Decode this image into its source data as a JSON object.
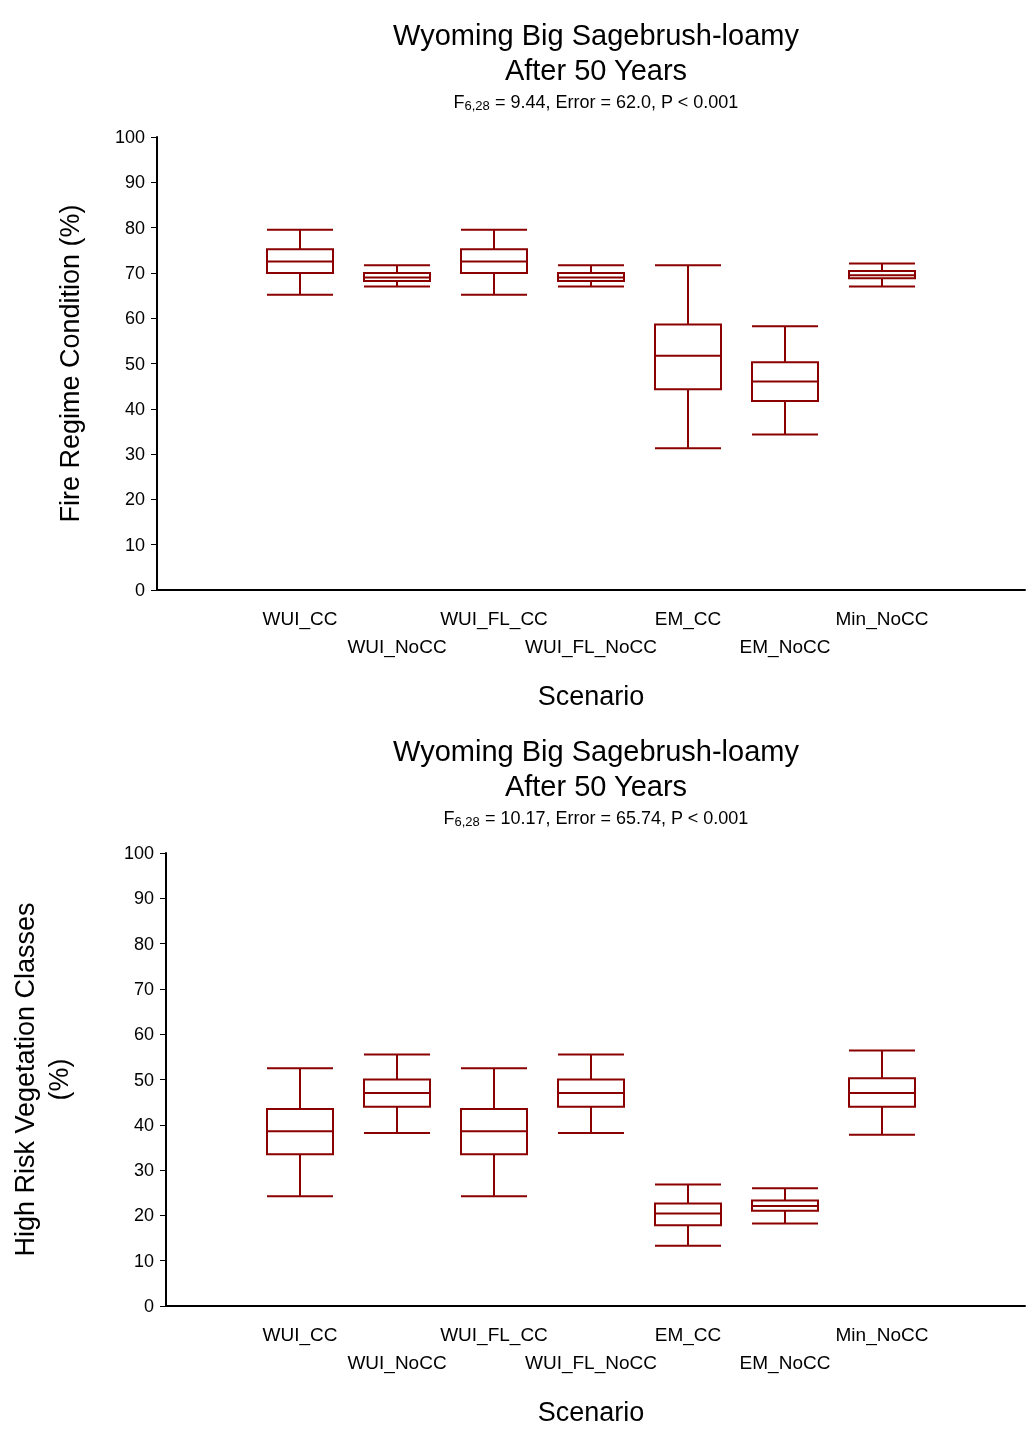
{
  "chart_data": [
    {
      "type": "box",
      "title": "Wyoming Big Sagebrush-loamy\nAfter 50 Years",
      "subtitle": "F$_{6,28}$ = 9.44, Error = 62.0, P < 0.001",
      "xlabel": "Scenario",
      "ylabel": "Fire Regime Condition (%)",
      "color": "#8b0000",
      "categories": [
        "WUI_CC",
        "WUI_NoCC",
        "WUI_FL_CC",
        "WUI_FL_NoCC",
        "EM_CC",
        "EM_NoCC",
        "Min_NoCC"
      ],
      "boxes": [
        {
          "low": 65.2,
          "q1": 70,
          "median": 72.5,
          "q3": 75.2,
          "high": 79.5
        },
        {
          "low": 67,
          "q1": 68.2,
          "median": 69,
          "q3": 70,
          "high": 71.7
        },
        {
          "low": 65.2,
          "q1": 70,
          "median": 72.5,
          "q3": 75.2,
          "high": 79.5
        },
        {
          "low": 67,
          "q1": 68.2,
          "median": 69,
          "q3": 70,
          "high": 71.7
        },
        {
          "low": 31.3,
          "q1": 44.3,
          "median": 51.7,
          "q3": 58.6,
          "high": 71.7
        },
        {
          "low": 34.3,
          "q1": 41.7,
          "median": 46,
          "q3": 50.3,
          "high": 58.2
        },
        {
          "low": 67,
          "q1": 68.8,
          "median": 69.5,
          "q3": 70.4,
          "high": 72.1
        }
      ],
      "ylim": [
        0,
        100
      ],
      "yticks": [
        0,
        10,
        20,
        30,
        40,
        50,
        60,
        70,
        80,
        90,
        100
      ]
    },
    {
      "type": "box",
      "title": "Wyoming Big Sagebrush-loamy\nAfter 50 Years",
      "subtitle": "F$_{6,28}$ = 10.17, Error = 65.74, P < 0.001",
      "xlabel": "Scenario",
      "ylabel": "High Risk Vegetation Classes\n(%)",
      "color": "#8b0000",
      "categories": [
        "WUI_CC",
        "WUI_NoCC",
        "WUI_FL_CC",
        "WUI_FL_NoCC",
        "EM_CC",
        "EM_NoCC",
        "Min_NoCC"
      ],
      "boxes": [
        {
          "low": 24.2,
          "q1": 33.5,
          "median": 38.6,
          "q3": 43.5,
          "high": 52.5
        },
        {
          "low": 38.2,
          "q1": 44,
          "median": 47,
          "q3": 50,
          "high": 55.5
        },
        {
          "low": 24.2,
          "q1": 33.5,
          "median": 38.6,
          "q3": 43.5,
          "high": 52.5
        },
        {
          "low": 38.2,
          "q1": 44,
          "median": 47,
          "q3": 50,
          "high": 55.5
        },
        {
          "low": 13.3,
          "q1": 17.8,
          "median": 20.4,
          "q3": 22.6,
          "high": 26.8
        },
        {
          "low": 18.2,
          "q1": 21,
          "median": 22.1,
          "q3": 23.3,
          "high": 26
        },
        {
          "low": 37.8,
          "q1": 44,
          "median": 47,
          "q3": 50.3,
          "high": 56.4
        }
      ],
      "ylim": [
        0,
        100
      ],
      "yticks": [
        0,
        10,
        20,
        30,
        40,
        50,
        60,
        70,
        80,
        90,
        100
      ]
    }
  ]
}
